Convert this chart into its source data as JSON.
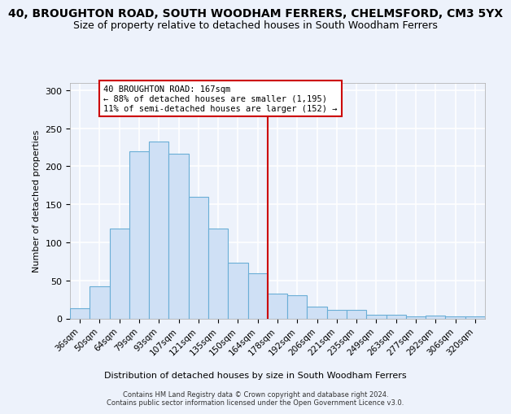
{
  "title": "40, BROUGHTON ROAD, SOUTH WOODHAM FERRERS, CHELMSFORD, CM3 5YX",
  "subtitle": "Size of property relative to detached houses in South Woodham Ferrers",
  "xlabel": "Distribution of detached houses by size in South Woodham Ferrers",
  "ylabel": "Number of detached properties",
  "categories": [
    "36sqm",
    "50sqm",
    "64sqm",
    "79sqm",
    "93sqm",
    "107sqm",
    "121sqm",
    "135sqm",
    "150sqm",
    "164sqm",
    "178sqm",
    "192sqm",
    "206sqm",
    "221sqm",
    "235sqm",
    "249sqm",
    "263sqm",
    "277sqm",
    "292sqm",
    "306sqm",
    "320sqm"
  ],
  "values": [
    13,
    42,
    118,
    220,
    232,
    216,
    160,
    118,
    73,
    59,
    33,
    30,
    15,
    11,
    11,
    5,
    5,
    3,
    4,
    3,
    3
  ],
  "bar_color_fill": "#cfe0f5",
  "bar_color_edge": "#6aaed6",
  "vline_x": 9.5,
  "vline_color": "#cc0000",
  "annotation_text": "40 BROUGHTON ROAD: 167sqm\n← 88% of detached houses are smaller (1,195)\n11% of semi-detached houses are larger (152) →",
  "annotation_box_color": "#cc0000",
  "ylim": [
    0,
    310
  ],
  "yticks": [
    0,
    50,
    100,
    150,
    200,
    250,
    300
  ],
  "footer": "Contains HM Land Registry data © Crown copyright and database right 2024.\nContains public sector information licensed under the Open Government Licence v3.0.",
  "bg_color": "#edf2fb",
  "grid_color": "#ffffff",
  "title_fontsize": 10,
  "subtitle_fontsize": 9
}
